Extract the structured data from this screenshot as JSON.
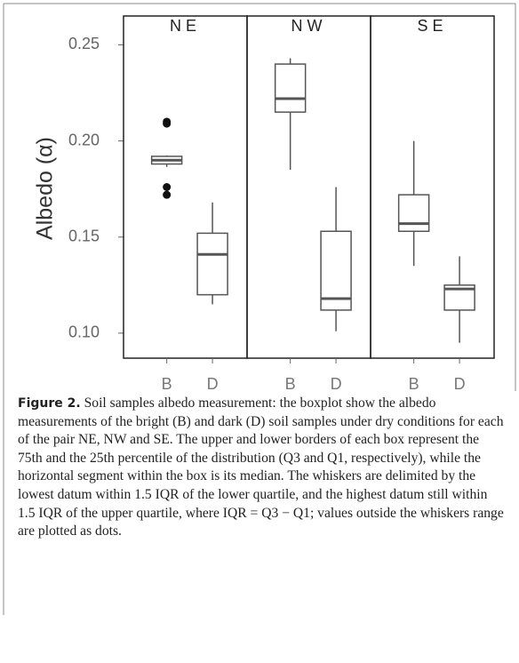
{
  "chart_data": {
    "type": "box",
    "y_label": "Albedo (α)",
    "categories": [
      "B",
      "D"
    ],
    "ylim": [
      0.087,
      0.265
    ],
    "yticks": [
      {
        "value": 0.1,
        "label": "0.10"
      },
      0.15,
      {
        "value": 0.2,
        "label": "0.20"
      },
      0.25
    ],
    "color": "#555555",
    "outlier_color": "#111111",
    "panels": [
      {
        "name": "NE",
        "boxes": [
          {
            "whisker_low": 0.1865,
            "q1": 0.188,
            "median": 0.19,
            "q3": 0.192,
            "whisker_high": 0.1925,
            "outliers": [
              0.21,
              0.209,
              0.176,
              0.172
            ]
          },
          {
            "whisker_low": 0.115,
            "q1": 0.12,
            "median": 0.141,
            "q3": 0.152,
            "whisker_high": 0.168,
            "outliers": []
          }
        ]
      },
      {
        "name": "NW",
        "boxes": [
          {
            "whisker_low": 0.185,
            "q1": 0.215,
            "median": 0.222,
            "q3": 0.24,
            "whisker_high": 0.243,
            "outliers": []
          },
          {
            "whisker_low": 0.101,
            "q1": 0.112,
            "median": 0.118,
            "q3": 0.153,
            "whisker_high": 0.176,
            "outliers": []
          }
        ]
      },
      {
        "name": "SE",
        "boxes": [
          {
            "whisker_low": 0.135,
            "q1": 0.153,
            "median": 0.157,
            "q3": 0.172,
            "whisker_high": 0.2,
            "outliers": []
          },
          {
            "whisker_low": 0.095,
            "q1": 0.112,
            "median": 0.123,
            "q3": 0.125,
            "whisker_high": 0.14,
            "outliers": []
          }
        ]
      }
    ]
  },
  "caption": {
    "label": "Figure 2.",
    "text": "Soil samples albedo measurement: the boxplot show the albedo measurements of the bright (B) and dark (D) soil samples under dry conditions for each of the pair NE, NW and SE. The upper and lower borders of each box represent the 75th and the 25th percentile of the distribution (Q3 and Q1, respectively), while the horizontal segment within the box is its median. The whiskers are delimited by the lowest datum within 1.5 IQR of the lower quartile, and the highest datum still within 1.5 IQR of the upper quartile, where IQR = Q3 − Q1; values outside the whiskers range are plotted as dots."
  }
}
